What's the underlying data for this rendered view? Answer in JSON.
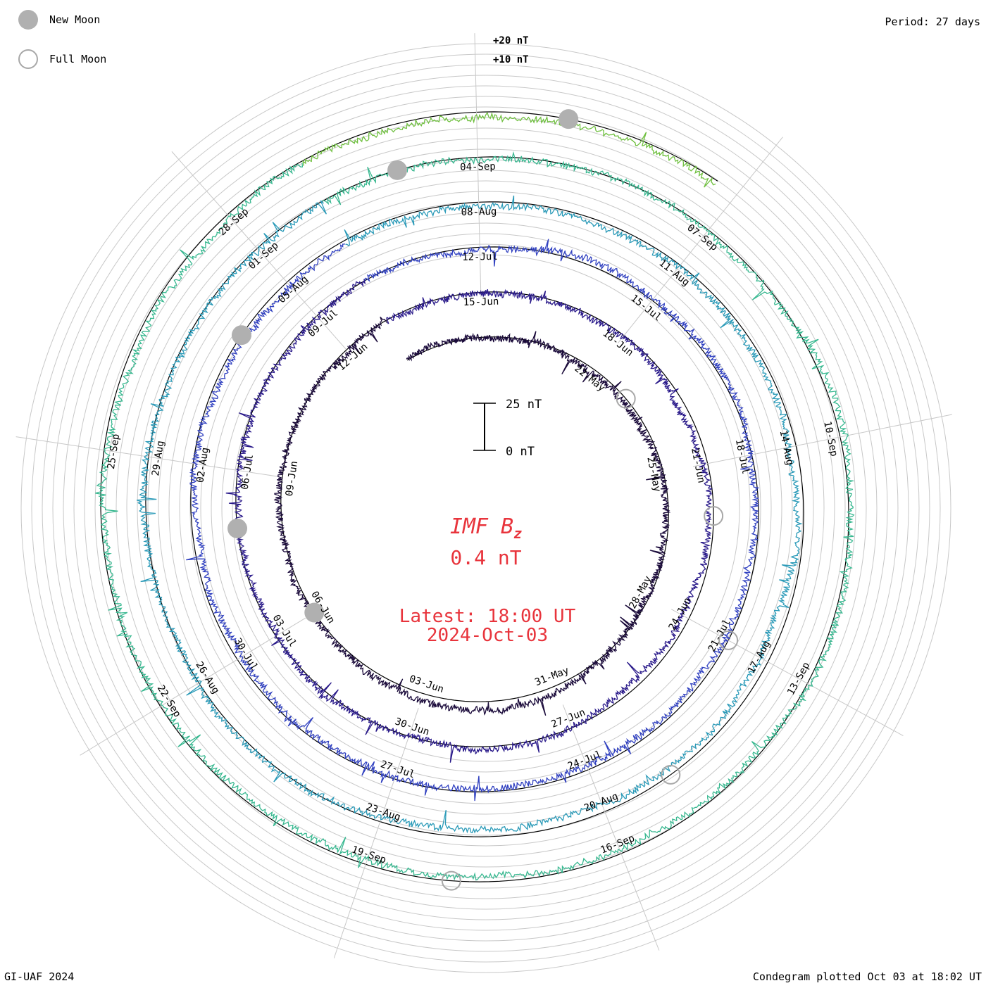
{
  "header": {
    "period_text": "Period: 27 days"
  },
  "footer": {
    "credit": "GI-UAF 2024",
    "plotted": "Condegram plotted Oct 03 at 18:02 UT"
  },
  "legend": {
    "new_moon": "New Moon",
    "full_moon": "Full Moon"
  },
  "scale": {
    "plus20": "+20 nT",
    "plus10": "+10 nT",
    "top": "25 nT",
    "bottom": "0 nT"
  },
  "center": {
    "title_main": "IMF B",
    "title_sub": "z",
    "value": "0.4 nT",
    "latest": "Latest: 18:00 UT",
    "date": "2024-Oct-03"
  },
  "chart_data": {
    "type": "line",
    "layout": "spiral condegram",
    "quantity": "IMF Bz",
    "units": "nT",
    "period_days": 27,
    "date_labels": [
      "22-May",
      "25-May",
      "28-May",
      "31-May",
      "03-Jun",
      "06-Jun",
      "09-Jun",
      "12-Jun",
      "15-Jun",
      "18-Jun",
      "21-Jun",
      "24-Jun",
      "27-Jun",
      "30-Jun",
      "03-Jul",
      "06-Jul",
      "09-Jul",
      "12-Jul",
      "15-Jul",
      "18-Jul",
      "21-Jul",
      "24-Jul",
      "27-Jul",
      "30-Jul",
      "02-Aug",
      "05-Aug",
      "08-Aug",
      "11-Aug",
      "14-Aug",
      "17-Aug",
      "20-Aug",
      "23-Aug",
      "26-Aug",
      "29-Aug",
      "01-Sep",
      "04-Sep",
      "07-Sep",
      "10-Sep",
      "13-Sep",
      "16-Sep",
      "19-Sep",
      "22-Sep",
      "25-Sep",
      "28-Sep"
    ],
    "rotation_colors": [
      "#1a0a3a",
      "#2a1a8a",
      "#3040c0",
      "#2a9ab8",
      "#38b890",
      "#70c040",
      "#a8b820",
      "#c09010",
      "#c85010",
      "#b81010"
    ],
    "new_moon_dates": [
      "2024-06-06",
      "2024-07-05",
      "2024-08-04",
      "2024-09-03",
      "2024-10-02"
    ],
    "full_moon_dates": [
      "2024-05-23",
      "2024-06-22",
      "2024-07-21",
      "2024-08-19",
      "2024-09-18"
    ],
    "latest_value_nT": 0.4
  }
}
